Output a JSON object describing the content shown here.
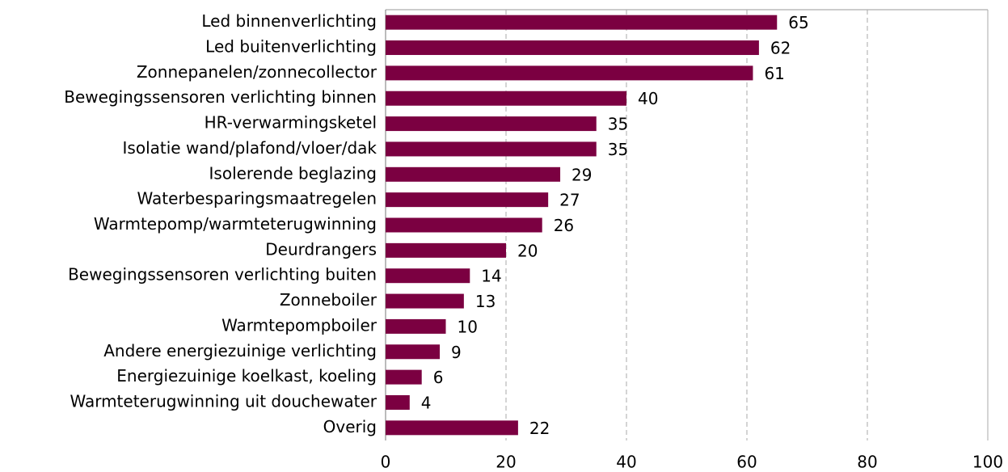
{
  "chart_data": {
    "type": "bar",
    "orientation": "horizontal",
    "categories": [
      "Led binnenverlichting",
      "Led buitenverlichting",
      "Zonnepanelen/zonnecollector",
      "Bewegingssensoren verlichting binnen",
      "HR-verwarmingsketel",
      "Isolatie wand/plafond/vloer/dak",
      "Isolerende beglazing",
      "Waterbesparingsmaatregelen",
      "Warmtepomp/warmteterugwinning",
      "Deurdrangers",
      "Bewegingssensoren verlichting buiten",
      "Zonneboiler",
      "Warmtepompboiler",
      "Andere energiezuinige verlichting",
      "Energiezuinige koelkast, koeling",
      "Warmteterugwinning uit douchewater",
      "Overig"
    ],
    "values": [
      65,
      62,
      61,
      40,
      35,
      35,
      29,
      27,
      26,
      20,
      14,
      13,
      10,
      9,
      6,
      4,
      22
    ],
    "color": "#7b0041",
    "xlim": [
      0,
      100
    ],
    "xticks": [
      0,
      20,
      40,
      60,
      80,
      100
    ],
    "grid": true
  }
}
